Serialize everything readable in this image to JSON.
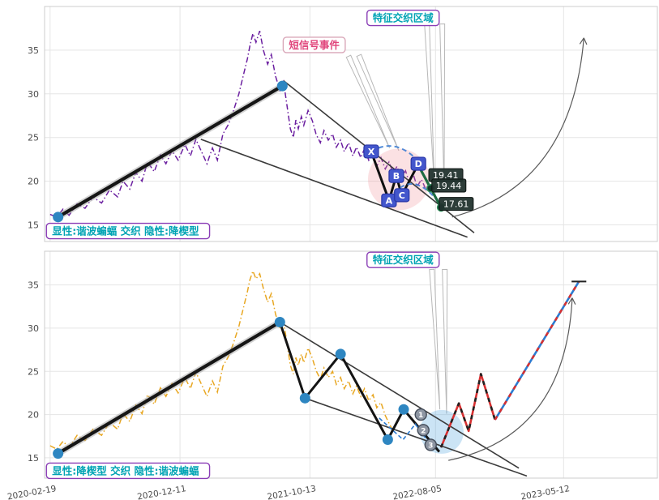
{
  "page": {
    "background": "#ffffff"
  },
  "axis": {
    "x_ticks": [
      {
        "f": 0.009,
        "label": "2020-02-19"
      },
      {
        "f": 0.221,
        "label": "2020-12-11"
      },
      {
        "f": 0.433,
        "label": "2021-10-13"
      },
      {
        "f": 0.638,
        "label": "2022-08-05"
      },
      {
        "f": 0.847,
        "label": "2023-05-12"
      }
    ],
    "y_ticks": [
      15,
      20,
      25,
      30,
      35
    ]
  },
  "chart_data": [
    {
      "type": "line",
      "name": "explicit-harmonic-bat-implicit-falling-wedge",
      "ylim": [
        13.1,
        40
      ],
      "show_x_labels": false,
      "series": {
        "name": "price",
        "color": "#6b1fa0",
        "points": [
          [
            0.009,
            16.2
          ],
          [
            0.02,
            15.9
          ],
          [
            0.03,
            16.8
          ],
          [
            0.04,
            16.1
          ],
          [
            0.053,
            17.4
          ],
          [
            0.066,
            16.9
          ],
          [
            0.079,
            18.2
          ],
          [
            0.093,
            17.5
          ],
          [
            0.106,
            19.0
          ],
          [
            0.119,
            18.2
          ],
          [
            0.128,
            20.0
          ],
          [
            0.139,
            19.1
          ],
          [
            0.149,
            21.0
          ],
          [
            0.159,
            20.0
          ],
          [
            0.168,
            22.2
          ],
          [
            0.179,
            21.1
          ],
          [
            0.189,
            23.0
          ],
          [
            0.198,
            22.0
          ],
          [
            0.208,
            23.5
          ],
          [
            0.218,
            22.4
          ],
          [
            0.229,
            24.2
          ],
          [
            0.238,
            22.9
          ],
          [
            0.247,
            24.8
          ],
          [
            0.258,
            23.1
          ],
          [
            0.265,
            22.0
          ],
          [
            0.274,
            23.8
          ],
          [
            0.282,
            22.4
          ],
          [
            0.291,
            25.4
          ],
          [
            0.3,
            26.5
          ],
          [
            0.308,
            28.0
          ],
          [
            0.317,
            30.0
          ],
          [
            0.324,
            32.0
          ],
          [
            0.331,
            34.0
          ],
          [
            0.335,
            35.5
          ],
          [
            0.34,
            36.9
          ],
          [
            0.345,
            35.9
          ],
          [
            0.351,
            37.2
          ],
          [
            0.357,
            35.0
          ],
          [
            0.364,
            33.4
          ],
          [
            0.37,
            34.5
          ],
          [
            0.377,
            32.0
          ],
          [
            0.384,
            30.4
          ],
          [
            0.39,
            31.4
          ],
          [
            0.397,
            28.0
          ],
          [
            0.401,
            26.0
          ],
          [
            0.406,
            25.0
          ],
          [
            0.41,
            27.0
          ],
          [
            0.414,
            26.0
          ],
          [
            0.419,
            27.4
          ],
          [
            0.423,
            26.4
          ],
          [
            0.43,
            28.1
          ],
          [
            0.437,
            26.9
          ],
          [
            0.443,
            25.4
          ],
          [
            0.45,
            24.4
          ],
          [
            0.456,
            25.8
          ],
          [
            0.463,
            24.7
          ],
          [
            0.47,
            25.4
          ],
          [
            0.476,
            23.9
          ],
          [
            0.483,
            24.7
          ],
          [
            0.489,
            23.4
          ],
          [
            0.496,
            24.4
          ],
          [
            0.503,
            22.9
          ],
          [
            0.509,
            23.9
          ],
          [
            0.516,
            22.7
          ],
          [
            0.522,
            23.7
          ],
          [
            0.529,
            22.4
          ],
          [
            0.536,
            23.2
          ],
          [
            0.542,
            21.7
          ],
          [
            0.549,
            22.7
          ],
          [
            0.556,
            21.4
          ],
          [
            0.562,
            22.2
          ],
          [
            0.569,
            20.9
          ],
          [
            0.575,
            21.7
          ],
          [
            0.582,
            20.4
          ],
          [
            0.589,
            21.2
          ],
          [
            0.595,
            19.9
          ],
          [
            0.602,
            20.7
          ],
          [
            0.608,
            19.4
          ],
          [
            0.615,
            20.2
          ],
          [
            0.622,
            19.1
          ],
          [
            0.628,
            19.7
          ]
        ]
      },
      "trend": {
        "points": [
          [
            0.022,
            15.9
          ],
          [
            0.388,
            30.9
          ]
        ],
        "dots": [
          [
            0.022,
            15.9
          ],
          [
            0.388,
            30.9
          ]
        ]
      },
      "lines": [
        {
          "points": [
            [
              0.39,
              31.5
            ],
            [
              0.701,
              14.1
            ]
          ]
        },
        {
          "points": [
            [
              0.255,
              24.8
            ],
            [
              0.69,
              13.6
            ]
          ]
        }
      ],
      "highlight": {
        "f": 0.578,
        "v": 20.2,
        "r": 38,
        "color": "rgba(242,146,155,0.28)"
      },
      "needles": [
        {
          "from": [
            0.496,
            34.3
          ],
          "to": [
            0.563,
            23.8
          ]
        },
        {
          "from": [
            0.513,
            34.4
          ],
          "to": [
            0.578,
            23.5
          ]
        },
        {
          "from": [
            0.624,
            38.0
          ],
          "to": [
            0.636,
            19.6
          ]
        },
        {
          "from": [
            0.649,
            38.0
          ],
          "to": [
            0.652,
            19.3
          ]
        }
      ],
      "pattern": {
        "color": "#4356cc",
        "path": [
          [
            0.533,
            23.4
          ],
          [
            0.562,
            17.8
          ],
          [
            0.574,
            20.6
          ],
          [
            0.583,
            18.4
          ],
          [
            0.61,
            22.0
          ]
        ],
        "letters": [
          {
            "ch": "X",
            "f": 0.533,
            "v": 23.4
          },
          {
            "ch": "A",
            "f": 0.562,
            "v": 17.8
          },
          {
            "ch": "B",
            "f": 0.574,
            "v": 20.6
          },
          {
            "ch": "C",
            "f": 0.583,
            "v": 18.4
          },
          {
            "ch": "D",
            "f": 0.61,
            "v": 22.0
          }
        ]
      },
      "arcs": [
        {
          "from": [
            0.533,
            23.4
          ],
          "ctrl": [
            0.575,
            25.2
          ],
          "to": [
            0.615,
            21.9
          ]
        },
        {
          "from": [
            0.562,
            17.9
          ],
          "ctrl": [
            0.6,
            21.8
          ],
          "to": [
            0.647,
            17.2
          ]
        }
      ],
      "green_path": {
        "color": "#1e6b43",
        "points": [
          [
            0.61,
            21.8
          ],
          [
            0.63,
            19.2
          ],
          [
            0.623,
            20.1
          ],
          [
            0.647,
            17.0
          ]
        ],
        "markers": [
          [
            0.63,
            19.2
          ],
          [
            0.647,
            17.0
          ]
        ]
      },
      "price_tags": [
        {
          "text": "19.41",
          "f": 0.627,
          "v": 20.7
        },
        {
          "text": "19.44",
          "f": 0.632,
          "v": 19.5
        },
        {
          "text": "17.61",
          "f": 0.644,
          "v": 17.4
        }
      ],
      "arrow": {
        "from": [
          0.665,
          15.9
        ],
        "ctrl": [
          0.86,
          19.5
        ],
        "to": [
          0.88,
          36.4
        ]
      },
      "boxes": [
        {
          "text": "特征交织区域",
          "f": 0.585,
          "v": 38.7,
          "style": "feature",
          "anchor": "middle"
        },
        {
          "text": "短信号事件",
          "f": 0.44,
          "v": 35.6,
          "style": "event",
          "anchor": "middle"
        },
        {
          "text": "显性:谐波蝙蝠 交织 隐性:降楔型",
          "f": 0.003,
          "v": 14.3,
          "style": "feature",
          "anchor": "start"
        }
      ]
    },
    {
      "type": "line",
      "name": "explicit-falling-wedge-implicit-harmonic-bat",
      "ylim": [
        12.65,
        38.9
      ],
      "show_x_labels": true,
      "series": {
        "name": "price",
        "color": "#e8a722",
        "points": [
          [
            0.009,
            16.4
          ],
          [
            0.02,
            16.0
          ],
          [
            0.03,
            16.9
          ],
          [
            0.04,
            16.2
          ],
          [
            0.053,
            17.6
          ],
          [
            0.066,
            17.0
          ],
          [
            0.079,
            18.3
          ],
          [
            0.093,
            17.6
          ],
          [
            0.106,
            19.1
          ],
          [
            0.119,
            18.3
          ],
          [
            0.128,
            20.1
          ],
          [
            0.139,
            19.2
          ],
          [
            0.149,
            21.1
          ],
          [
            0.159,
            20.1
          ],
          [
            0.168,
            22.3
          ],
          [
            0.179,
            21.2
          ],
          [
            0.189,
            23.1
          ],
          [
            0.198,
            22.1
          ],
          [
            0.208,
            23.6
          ],
          [
            0.218,
            22.5
          ],
          [
            0.229,
            24.3
          ],
          [
            0.238,
            23.0
          ],
          [
            0.247,
            24.9
          ],
          [
            0.258,
            23.2
          ],
          [
            0.265,
            22.1
          ],
          [
            0.274,
            23.9
          ],
          [
            0.282,
            22.6
          ],
          [
            0.291,
            25.6
          ],
          [
            0.3,
            26.7
          ],
          [
            0.308,
            28.2
          ],
          [
            0.317,
            30.2
          ],
          [
            0.324,
            32.2
          ],
          [
            0.331,
            34.2
          ],
          [
            0.335,
            35.6
          ],
          [
            0.34,
            36.6
          ],
          [
            0.345,
            35.7
          ],
          [
            0.351,
            36.3
          ],
          [
            0.357,
            34.6
          ],
          [
            0.364,
            33.0
          ],
          [
            0.37,
            34.0
          ],
          [
            0.377,
            31.6
          ],
          [
            0.384,
            30.0
          ],
          [
            0.39,
            30.8
          ],
          [
            0.397,
            27.6
          ],
          [
            0.401,
            25.7
          ],
          [
            0.406,
            24.7
          ],
          [
            0.41,
            26.6
          ],
          [
            0.414,
            25.7
          ],
          [
            0.419,
            27.0
          ],
          [
            0.423,
            26.0
          ],
          [
            0.43,
            27.7
          ],
          [
            0.437,
            26.5
          ],
          [
            0.443,
            25.1
          ],
          [
            0.45,
            24.1
          ],
          [
            0.456,
            25.4
          ],
          [
            0.463,
            24.3
          ],
          [
            0.47,
            25.0
          ],
          [
            0.476,
            23.5
          ],
          [
            0.483,
            24.3
          ],
          [
            0.489,
            23.0
          ],
          [
            0.496,
            23.9
          ],
          [
            0.503,
            22.4
          ],
          [
            0.509,
            23.3
          ],
          [
            0.516,
            22.1
          ],
          [
            0.522,
            23.0
          ],
          [
            0.529,
            21.6
          ],
          [
            0.536,
            22.3
          ],
          [
            0.542,
            20.8
          ],
          [
            0.549,
            21.4
          ],
          [
            0.556,
            19.9
          ],
          [
            0.562,
            19.0
          ],
          [
            0.568,
            18.2
          ]
        ]
      },
      "trend": {
        "points": [
          [
            0.022,
            15.5
          ],
          [
            0.384,
            30.7
          ]
        ],
        "dots": [
          [
            0.022,
            15.5
          ]
        ]
      },
      "zigzag": {
        "points": [
          [
            0.384,
            30.7
          ],
          [
            0.425,
            21.9
          ],
          [
            0.483,
            27.0
          ],
          [
            0.56,
            17.1
          ],
          [
            0.586,
            20.6
          ],
          [
            0.644,
            15.7
          ]
        ],
        "dots": [
          [
            0.384,
            30.7
          ],
          [
            0.425,
            21.9
          ],
          [
            0.483,
            27.0
          ],
          [
            0.56,
            17.1
          ],
          [
            0.586,
            20.6
          ]
        ]
      },
      "lines": [
        {
          "points": [
            [
              0.384,
              30.7
            ],
            [
              0.774,
              13.8
            ]
          ]
        },
        {
          "points": [
            [
              0.425,
              21.9
            ],
            [
              0.787,
              12.9
            ]
          ]
        }
      ],
      "mini_zigzag": {
        "color": "#2b7bd1",
        "points": [
          [
            0.546,
            19.6
          ],
          [
            0.585,
            17.1
          ],
          [
            0.605,
            18.9
          ],
          [
            0.636,
            15.9
          ]
        ]
      },
      "red_path": {
        "color": "#d63031",
        "points": [
          [
            0.647,
            16.2
          ],
          [
            0.676,
            21.3
          ],
          [
            0.692,
            18.1
          ],
          [
            0.712,
            24.7
          ],
          [
            0.735,
            19.4
          ]
        ]
      },
      "rise_path": {
        "color": "#2b7bd1",
        "points": [
          [
            0.735,
            19.4
          ],
          [
            0.872,
            35.4
          ]
        ],
        "tick": [
          [
            0.86,
            35.4
          ],
          [
            0.884,
            35.4
          ]
        ]
      },
      "num_circles": [
        {
          "n": "1",
          "f": 0.614,
          "v": 20.0
        },
        {
          "n": "2",
          "f": 0.618,
          "v": 18.2
        },
        {
          "n": "3",
          "f": 0.63,
          "v": 16.5
        }
      ],
      "highlight": {
        "f": 0.648,
        "v": 18.0,
        "r": 27,
        "color": "rgba(84,166,222,0.30)"
      },
      "needles": [
        {
          "from": [
            0.632,
            36.8
          ],
          "to": [
            0.645,
            20.6
          ]
        },
        {
          "from": [
            0.653,
            36.8
          ],
          "to": [
            0.656,
            20.1
          ]
        }
      ],
      "arrow": {
        "from": [
          0.659,
          14.7
        ],
        "ctrl": [
          0.85,
          17.5
        ],
        "to": [
          0.861,
          33.5
        ]
      },
      "boxes": [
        {
          "text": "特征交织区域",
          "f": 0.585,
          "v": 37.9,
          "style": "feature",
          "anchor": "middle"
        },
        {
          "text": "显性:降楔型 交织 隐性:谐波蝙蝠",
          "f": 0.003,
          "v": 13.5,
          "style": "feature",
          "anchor": "start"
        }
      ]
    }
  ],
  "colors": {
    "grid": "#e5e5e5",
    "border": "#cccccc",
    "tick_text": "#4a4a4a",
    "anchor_dot": "#2e86c1",
    "feature_box_border": "#8a3db6",
    "feature_box_text": "#00a3b4",
    "event_box_text": "#e0457b",
    "price_tag_bg": "#22332e"
  }
}
